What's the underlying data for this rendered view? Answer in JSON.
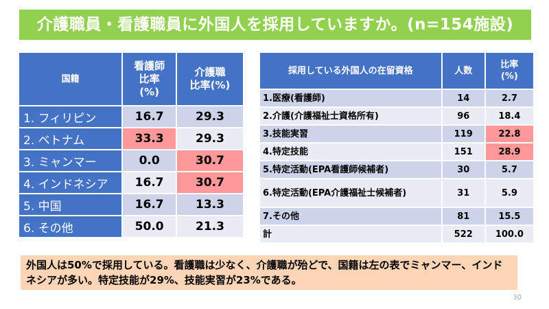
{
  "title": "介護職員・看護職員に外国人を採用していますか。(n=154施設)",
  "left_table": {
    "headers": [
      "国籍",
      "看護師\n比率\n(%)",
      "介護職\n比率(%)"
    ],
    "rows": [
      {
        "label": "1. フィリピン",
        "nurse": "16.7",
        "care": "29.3"
      },
      {
        "label": "2. ベトナム",
        "nurse": "33.3",
        "care": "29.3"
      },
      {
        "label": "3. ミャンマー",
        "nurse": "0.0",
        "care": "30.7"
      },
      {
        "label": "4. インドネシア",
        "nurse": "16.7",
        "care": "30.7"
      },
      {
        "label": "5. 中国",
        "nurse": "16.7",
        "care": "13.3"
      },
      {
        "label": "6. その他",
        "nurse": "50.0",
        "care": "21.3"
      }
    ]
  },
  "right_table": {
    "headers": [
      "採用している外国人の在留資格",
      "人数",
      "比率\n(%)"
    ],
    "rows": [
      {
        "label": "1.医療(看護師)",
        "count": "14",
        "ratio": "2.7"
      },
      {
        "label": "2.介護(介護福祉士資格所有)",
        "count": "96",
        "ratio": "18.4"
      },
      {
        "label": "3.技能実習",
        "count": "119",
        "ratio": "22.8"
      },
      {
        "label": "4.特定技能",
        "count": "151",
        "ratio": "28.9"
      },
      {
        "label": "5.特定活動(EPA看護師候補者)",
        "count": "30",
        "ratio": "5.7"
      },
      {
        "label": "6.特定活動(EPA介護福祉士候補者)",
        "count": "31",
        "ratio": "5.9"
      },
      {
        "label": "7.その他",
        "count": "81",
        "ratio": "15.5"
      },
      {
        "label": "計",
        "count": "522",
        "ratio": "100.0"
      }
    ]
  },
  "summary": "外国人は50%で採用している。看護職は少なく、介護職が殆どで、国籍は左の表でミャンマー、インドネシアが多い。特定技能が29%、技能実習が23%である。",
  "page_number": "30",
  "colors": {
    "title_bg": "#92d050",
    "header_bg": "#4472c4",
    "row_light": "#cdd4ea",
    "row_lighter": "#e9ebf5",
    "highlight": "#ff9999",
    "summary_bg": "#fbd5b5"
  }
}
